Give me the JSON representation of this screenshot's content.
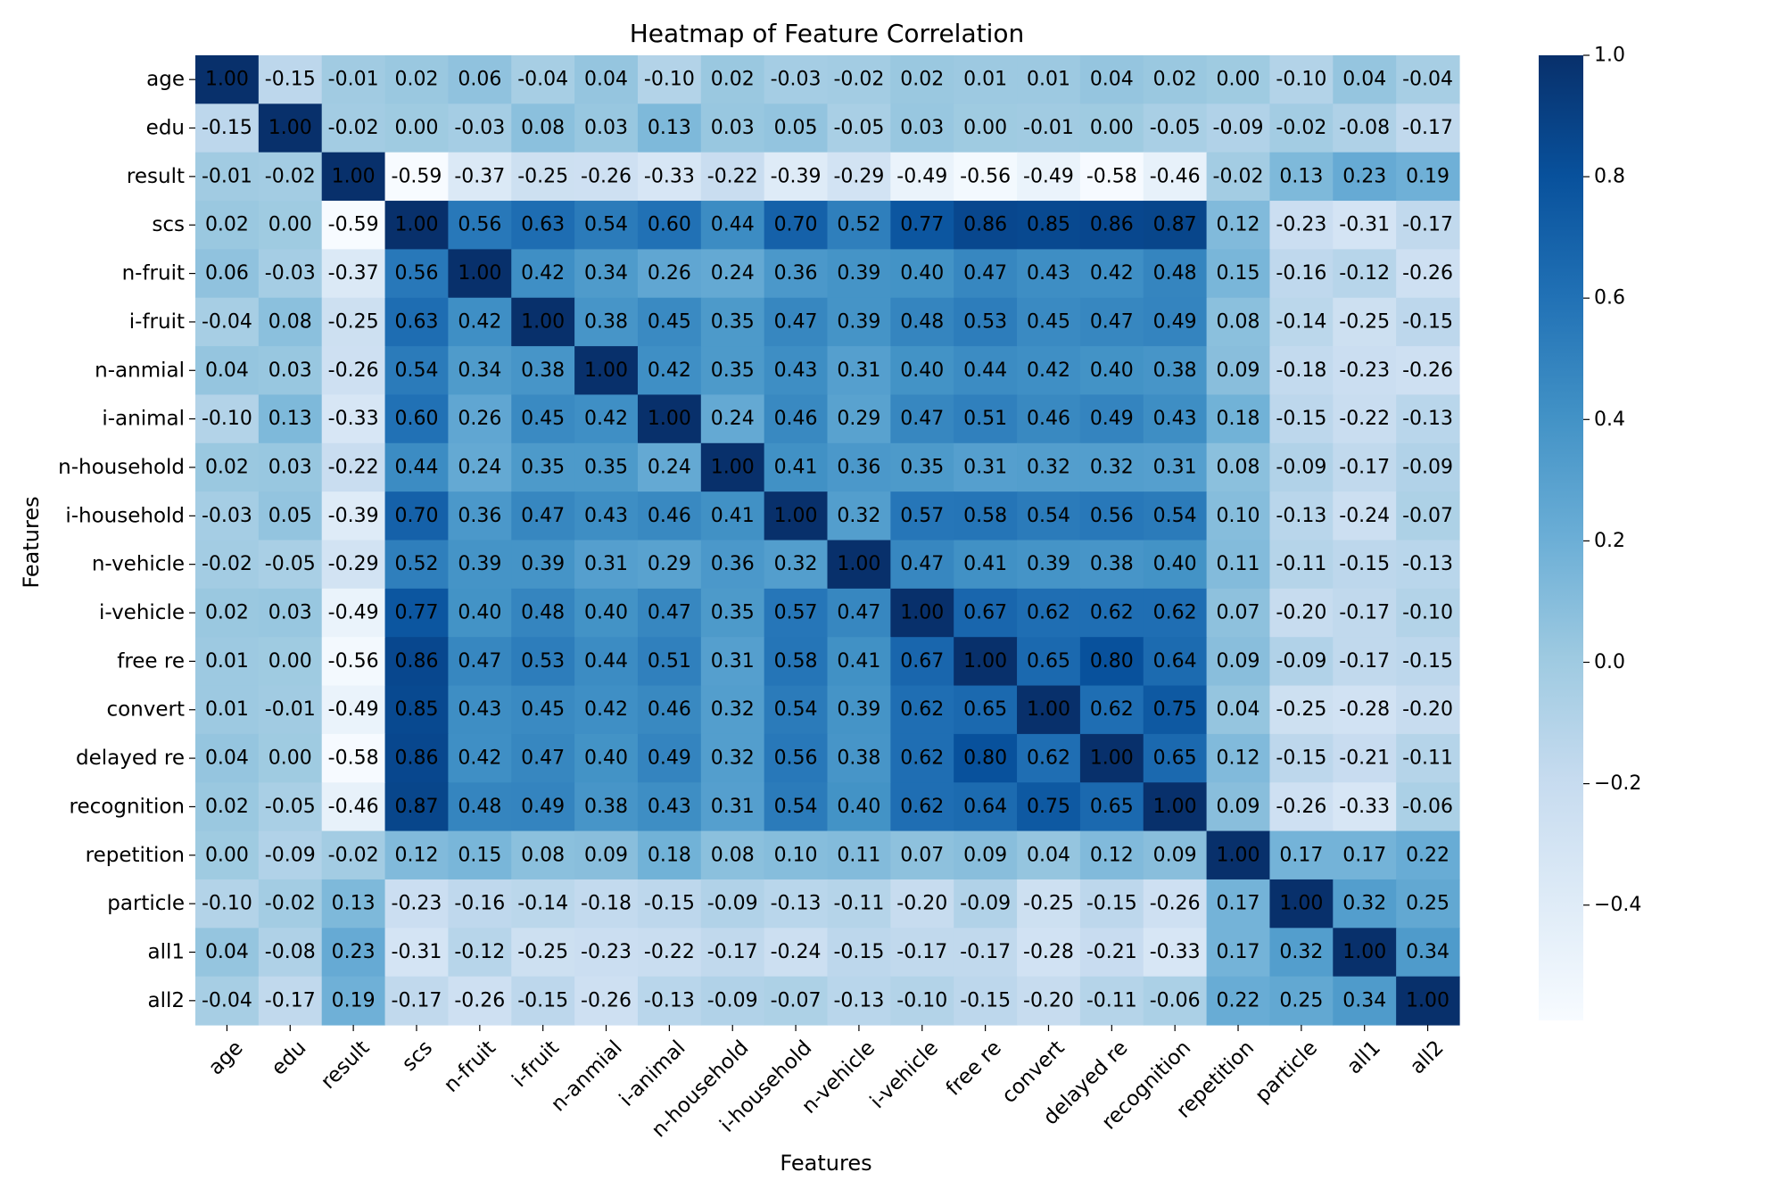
{
  "chart_data": {
    "type": "heatmap",
    "title": "Heatmap of Feature Correlation",
    "xlabel": "Features",
    "ylabel": "Features",
    "labels": [
      "age",
      "edu",
      "result",
      "scs",
      "n-fruit",
      "i-fruit",
      "n-anmial",
      "i-animal",
      "n-household",
      "i-household",
      "n-vehicle",
      "i-vehicle",
      "free re",
      "convert",
      "delayed re",
      "recognition",
      "repetition",
      "particle",
      "all1",
      "all2"
    ],
    "matrix": [
      [
        1.0,
        -0.15,
        -0.01,
        0.02,
        0.06,
        -0.04,
        0.04,
        -0.1,
        0.02,
        -0.03,
        -0.02,
        0.02,
        0.01,
        0.01,
        0.04,
        0.02,
        -0.0,
        -0.1,
        0.04,
        -0.04
      ],
      [
        -0.15,
        1.0,
        -0.02,
        0.0,
        -0.03,
        0.08,
        0.03,
        0.13,
        0.03,
        0.05,
        -0.05,
        0.03,
        -0.0,
        -0.01,
        0.0,
        -0.05,
        -0.09,
        -0.02,
        -0.08,
        -0.17
      ],
      [
        -0.01,
        -0.02,
        1.0,
        -0.59,
        -0.37,
        -0.25,
        -0.26,
        -0.33,
        -0.22,
        -0.39,
        -0.29,
        -0.49,
        -0.56,
        -0.49,
        -0.58,
        -0.46,
        -0.02,
        0.13,
        0.23,
        0.19
      ],
      [
        0.02,
        0.0,
        -0.59,
        1.0,
        0.56,
        0.63,
        0.54,
        0.6,
        0.44,
        0.7,
        0.52,
        0.77,
        0.86,
        0.85,
        0.86,
        0.87,
        0.12,
        -0.23,
        -0.31,
        -0.17
      ],
      [
        0.06,
        -0.03,
        -0.37,
        0.56,
        1.0,
        0.42,
        0.34,
        0.26,
        0.24,
        0.36,
        0.39,
        0.4,
        0.47,
        0.43,
        0.42,
        0.48,
        0.15,
        -0.16,
        -0.12,
        -0.26
      ],
      [
        -0.04,
        0.08,
        -0.25,
        0.63,
        0.42,
        1.0,
        0.38,
        0.45,
        0.35,
        0.47,
        0.39,
        0.48,
        0.53,
        0.45,
        0.47,
        0.49,
        0.08,
        -0.14,
        -0.25,
        -0.15
      ],
      [
        0.04,
        0.03,
        -0.26,
        0.54,
        0.34,
        0.38,
        1.0,
        0.42,
        0.35,
        0.43,
        0.31,
        0.4,
        0.44,
        0.42,
        0.4,
        0.38,
        0.09,
        -0.18,
        -0.23,
        -0.26
      ],
      [
        -0.1,
        0.13,
        -0.33,
        0.6,
        0.26,
        0.45,
        0.42,
        1.0,
        0.24,
        0.46,
        0.29,
        0.47,
        0.51,
        0.46,
        0.49,
        0.43,
        0.18,
        -0.15,
        -0.22,
        -0.13
      ],
      [
        0.02,
        0.03,
        -0.22,
        0.44,
        0.24,
        0.35,
        0.35,
        0.24,
        1.0,
        0.41,
        0.36,
        0.35,
        0.31,
        0.32,
        0.32,
        0.31,
        0.08,
        -0.09,
        -0.17,
        -0.09
      ],
      [
        -0.03,
        0.05,
        -0.39,
        0.7,
        0.36,
        0.47,
        0.43,
        0.46,
        0.41,
        1.0,
        0.32,
        0.57,
        0.58,
        0.54,
        0.56,
        0.54,
        0.1,
        -0.13,
        -0.24,
        -0.07
      ],
      [
        -0.02,
        -0.05,
        -0.29,
        0.52,
        0.39,
        0.39,
        0.31,
        0.29,
        0.36,
        0.32,
        1.0,
        0.47,
        0.41,
        0.39,
        0.38,
        0.4,
        0.11,
        -0.11,
        -0.15,
        -0.13
      ],
      [
        0.02,
        0.03,
        -0.49,
        0.77,
        0.4,
        0.48,
        0.4,
        0.47,
        0.35,
        0.57,
        0.47,
        1.0,
        0.67,
        0.62,
        0.62,
        0.62,
        0.07,
        -0.2,
        -0.17,
        -0.1
      ],
      [
        0.01,
        -0.0,
        -0.56,
        0.86,
        0.47,
        0.53,
        0.44,
        0.51,
        0.31,
        0.58,
        0.41,
        0.67,
        1.0,
        0.65,
        0.8,
        0.64,
        0.09,
        -0.09,
        -0.17,
        -0.15
      ],
      [
        0.01,
        -0.01,
        -0.49,
        0.85,
        0.43,
        0.45,
        0.42,
        0.46,
        0.32,
        0.54,
        0.39,
        0.62,
        0.65,
        1.0,
        0.62,
        0.75,
        0.04,
        -0.25,
        -0.28,
        -0.2
      ],
      [
        0.04,
        0.0,
        -0.58,
        0.86,
        0.42,
        0.47,
        0.4,
        0.49,
        0.32,
        0.56,
        0.38,
        0.62,
        0.8,
        0.62,
        1.0,
        0.65,
        0.12,
        -0.15,
        -0.21,
        -0.11
      ],
      [
        0.02,
        -0.05,
        -0.46,
        0.87,
        0.48,
        0.49,
        0.38,
        0.43,
        0.31,
        0.54,
        0.4,
        0.62,
        0.64,
        0.75,
        0.65,
        1.0,
        0.09,
        -0.26,
        -0.33,
        -0.06
      ],
      [
        -0.0,
        -0.09,
        -0.02,
        0.12,
        0.15,
        0.08,
        0.09,
        0.18,
        0.08,
        0.1,
        0.11,
        0.07,
        0.09,
        0.04,
        0.12,
        0.09,
        1.0,
        0.17,
        0.17,
        0.22
      ],
      [
        -0.1,
        -0.02,
        0.13,
        -0.23,
        -0.16,
        -0.14,
        -0.18,
        -0.15,
        -0.09,
        -0.13,
        -0.11,
        -0.2,
        -0.09,
        -0.25,
        -0.15,
        -0.26,
        0.17,
        1.0,
        0.32,
        0.25
      ],
      [
        0.04,
        -0.08,
        0.23,
        -0.31,
        -0.12,
        -0.25,
        -0.23,
        -0.22,
        -0.17,
        -0.24,
        -0.15,
        -0.17,
        -0.17,
        -0.28,
        -0.21,
        -0.33,
        0.17,
        0.32,
        1.0,
        0.34
      ],
      [
        -0.04,
        -0.17,
        0.19,
        -0.17,
        -0.26,
        -0.15,
        -0.26,
        -0.13,
        -0.09,
        -0.07,
        -0.13,
        -0.1,
        -0.15,
        -0.2,
        -0.11,
        -0.06,
        0.22,
        0.25,
        0.34,
        1.0
      ]
    ],
    "colormap": "Blues",
    "vmin": -0.59,
    "vmax": 1.0,
    "colorbar_ticks": [
      1.0,
      0.8,
      0.6,
      0.4,
      0.2,
      0.0,
      -0.2,
      -0.4
    ],
    "colorbar_tick_labels": [
      "1.0",
      "0.8",
      "0.6",
      "0.4",
      "0.2",
      "0.0",
      "−0.2",
      "−0.4"
    ],
    "annotation_format": "0.00",
    "grid": false
  }
}
